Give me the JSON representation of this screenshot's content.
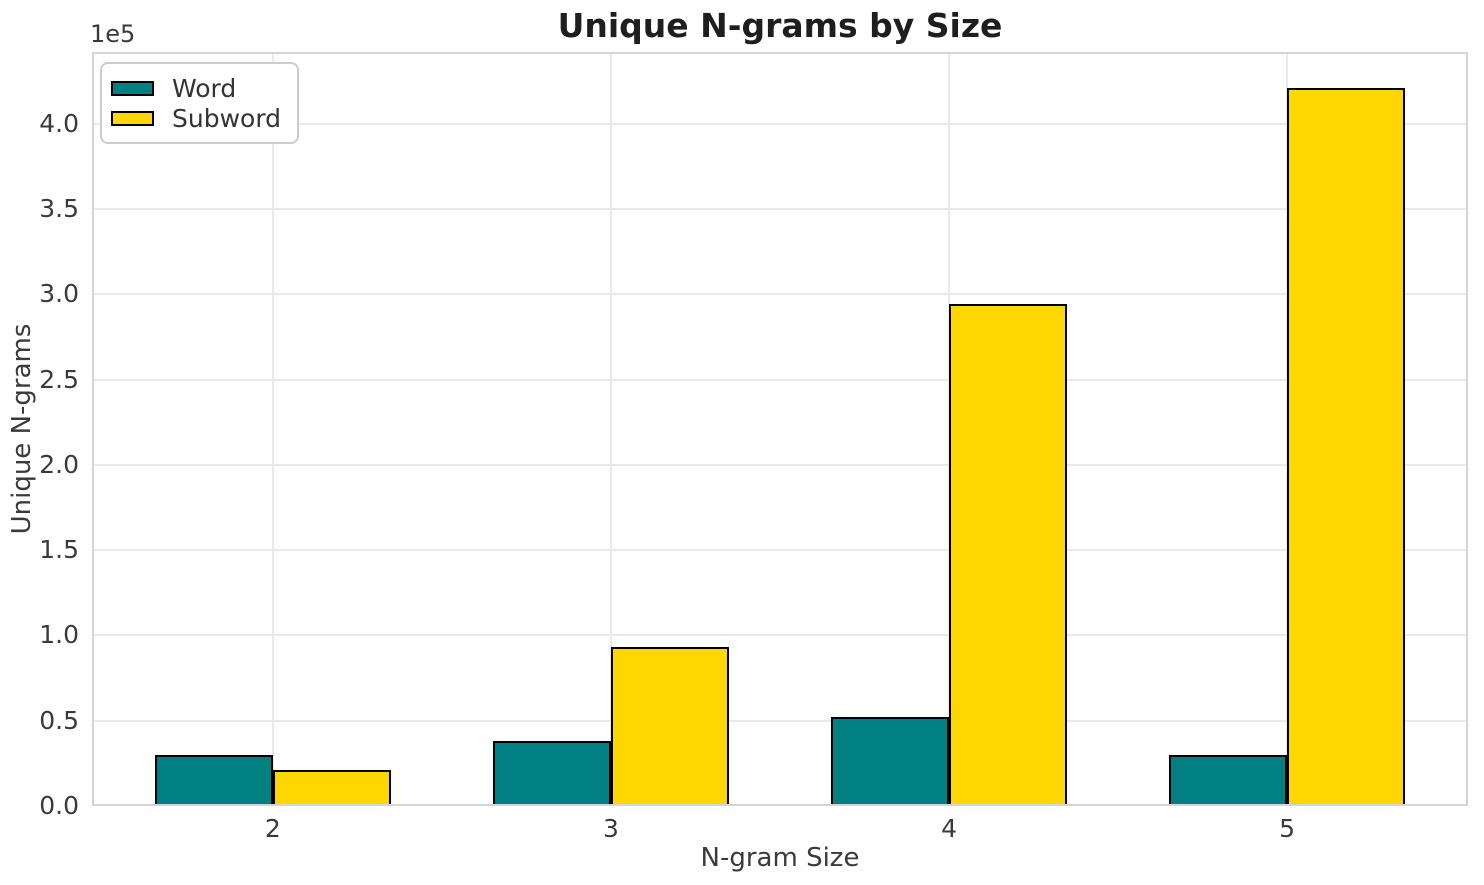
{
  "figure": {
    "title": "Unique N-grams by Size",
    "offset_text": "1e5"
  },
  "legend": {
    "position": "upper left",
    "items": [
      {
        "label": "Word",
        "color": "#008080"
      },
      {
        "label": "Subword",
        "color": "#FFD700"
      }
    ]
  },
  "chart_data": {
    "type": "bar",
    "title": "Unique N-grams by Size",
    "xlabel": "N-gram Size",
    "ylabel": "Unique N-grams",
    "categories": [
      "2",
      "3",
      "4",
      "5"
    ],
    "series": [
      {
        "name": "Word",
        "color": "#008080",
        "values": [
          30000,
          38000,
          52000,
          30000
        ]
      },
      {
        "name": "Subword",
        "color": "#FFD700",
        "values": [
          21000,
          93000,
          294000,
          421000
        ]
      }
    ],
    "bar_width": 0.35,
    "bar_edge_color": "#000000",
    "ylim": [
      0,
      442000
    ],
    "yticks": [
      0,
      50000,
      100000,
      150000,
      200000,
      250000,
      300000,
      350000,
      400000
    ],
    "ytick_labels": [
      "0.0",
      "0.5",
      "1.0",
      "1.5",
      "2.0",
      "2.5",
      "3.0",
      "3.5",
      "4.0"
    ],
    "y_offset_text": "1e5",
    "xtick_labels": [
      "2",
      "3",
      "4",
      "5"
    ],
    "grid": true,
    "grid_color": "#e9e9e9",
    "legend_position": "upper left",
    "background": "#ffffff"
  }
}
